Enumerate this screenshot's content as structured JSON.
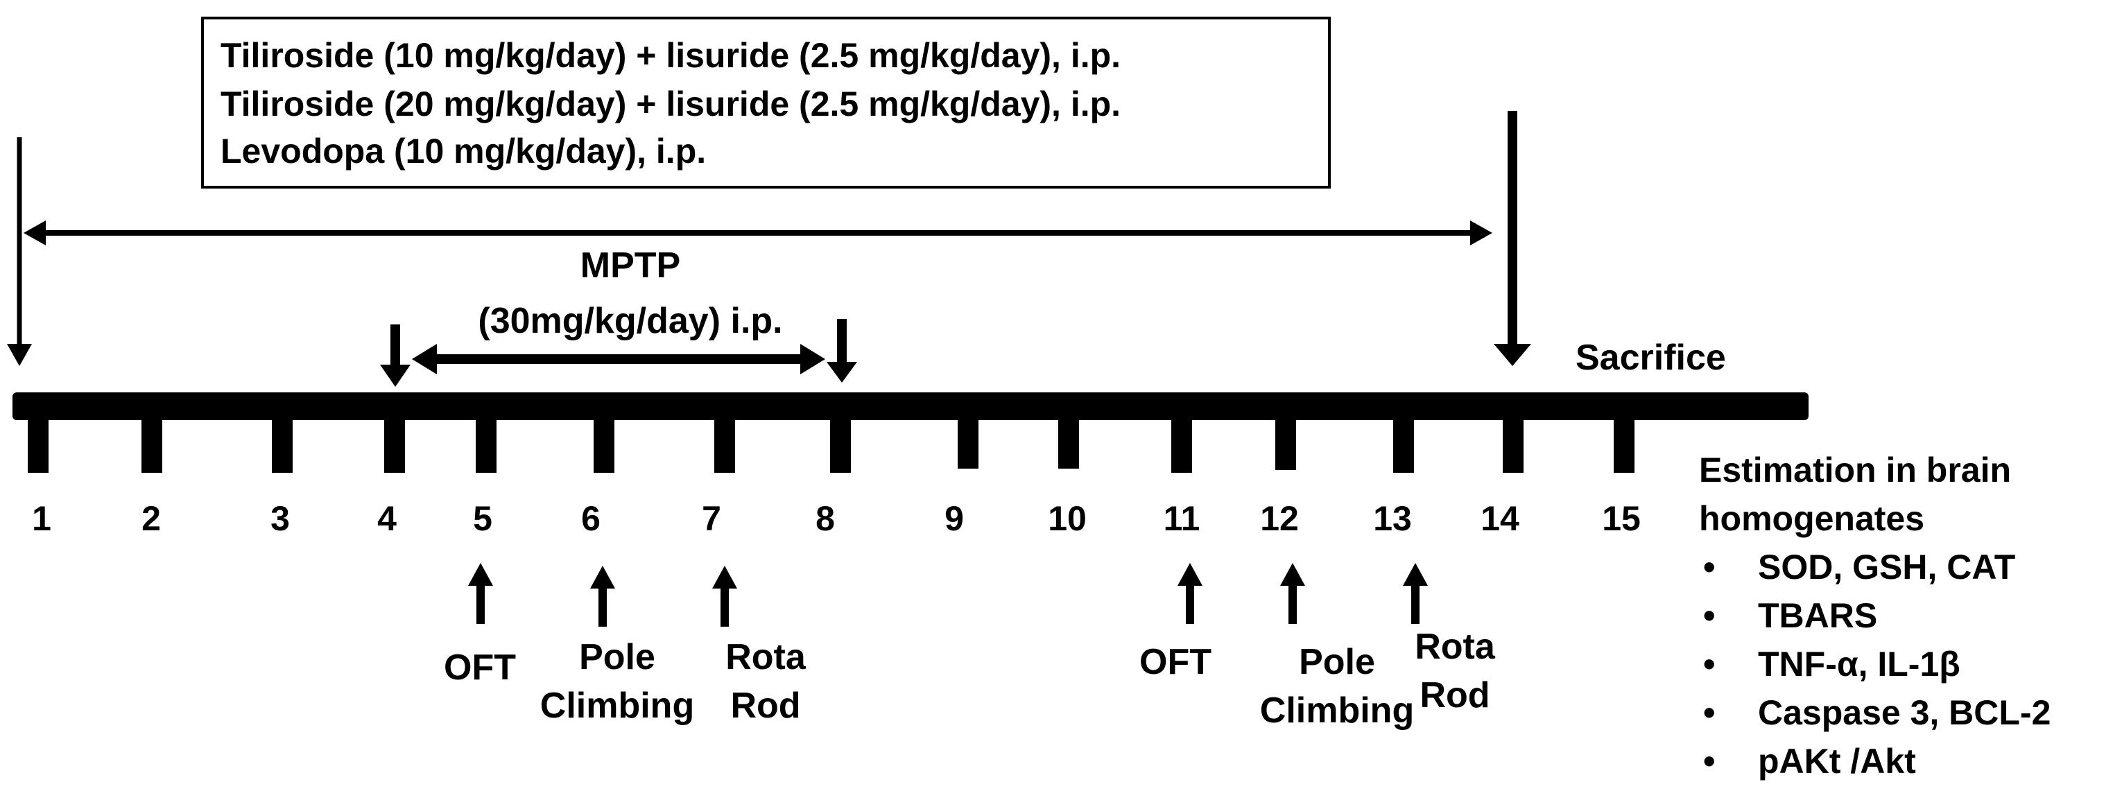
{
  "treatment_box": {
    "lines": [
      "Tiliroside (10 mg/kg/day) + lisuride (2.5 mg/kg/day), i.p.",
      "Tiliroside (20 mg/kg/day) + lisuride (2.5 mg/kg/day), i.p.",
      "Levodopa (10 mg/kg/day), i.p."
    ]
  },
  "mptp": {
    "line1": "MPTP",
    "line2": "(30mg/kg/day) i.p."
  },
  "sacrifice_label": "Sacrifice",
  "days": [
    "1",
    "2",
    "3",
    "4",
    "5",
    "6",
    "7",
    "8",
    "9",
    "10",
    "11",
    "12",
    "13",
    "14",
    "15"
  ],
  "tests": [
    {
      "line1": "OFT",
      "line2": ""
    },
    {
      "line1": "Pole",
      "line2": "Climbing"
    },
    {
      "line1": "Rota",
      "line2": "Rod"
    },
    {
      "line1": "OFT",
      "line2": ""
    },
    {
      "line1": "Pole",
      "line2": "Climbing"
    },
    {
      "line1": "Rota",
      "line2": "Rod"
    }
  ],
  "estimation": {
    "title_line1": "Estimation in brain",
    "title_line2": "homogenates",
    "bullet": "•",
    "items": [
      "SOD, GSH, CAT",
      "TBARS",
      "TNF-α, IL-1β",
      "Caspase 3, BCL-2",
      "pAKt /Akt"
    ]
  }
}
